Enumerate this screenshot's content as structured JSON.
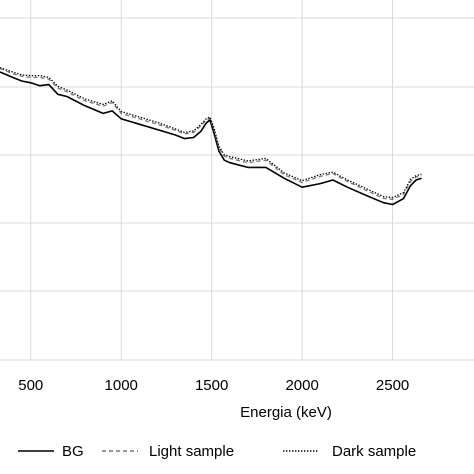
{
  "chart_data": {
    "type": "line",
    "xlabel": "Energia (keV)",
    "x_ticks": [
      "500",
      "1000",
      "1500",
      "2000",
      "2500"
    ],
    "xlim": [
      330,
      2950
    ],
    "ylim": [
      0,
      1
    ],
    "grid": {
      "vertical": true,
      "horizontal": true
    },
    "legend_position": "bottom",
    "series": [
      {
        "name": "BG",
        "style": "solid",
        "color": "#000000",
        "x": [
          330,
          400,
          450,
          500,
          550,
          600,
          650,
          700,
          800,
          900,
          950,
          1000,
          1100,
          1200,
          1300,
          1350,
          1400,
          1440,
          1470,
          1490,
          1510,
          1540,
          1570,
          1600,
          1700,
          1800,
          1900,
          2000,
          2100,
          2170,
          2250,
          2350,
          2450,
          2500,
          2560,
          2600,
          2630,
          2660
        ],
        "y": [
          0.8,
          0.785,
          0.775,
          0.77,
          0.762,
          0.765,
          0.738,
          0.732,
          0.706,
          0.685,
          0.692,
          0.67,
          0.655,
          0.64,
          0.625,
          0.615,
          0.618,
          0.635,
          0.658,
          0.667,
          0.635,
          0.58,
          0.555,
          0.548,
          0.535,
          0.535,
          0.505,
          0.48,
          0.49,
          0.5,
          0.48,
          0.458,
          0.437,
          0.432,
          0.448,
          0.485,
          0.5,
          0.505
        ]
      },
      {
        "name": "Light sample",
        "style": "dashed",
        "color": "#777777",
        "x": [
          330,
          400,
          450,
          500,
          550,
          600,
          650,
          700,
          800,
          900,
          950,
          1000,
          1100,
          1200,
          1300,
          1350,
          1400,
          1440,
          1470,
          1490,
          1510,
          1540,
          1570,
          1600,
          1700,
          1800,
          1900,
          2000,
          2100,
          2170,
          2250,
          2350,
          2450,
          2500,
          2560,
          2600,
          2630,
          2660
        ],
        "y": [
          0.81,
          0.795,
          0.788,
          0.785,
          0.785,
          0.78,
          0.755,
          0.745,
          0.72,
          0.705,
          0.715,
          0.685,
          0.67,
          0.655,
          0.638,
          0.628,
          0.632,
          0.65,
          0.667,
          0.672,
          0.645,
          0.59,
          0.566,
          0.56,
          0.548,
          0.555,
          0.515,
          0.493,
          0.51,
          0.518,
          0.496,
          0.472,
          0.449,
          0.446,
          0.46,
          0.497,
          0.508,
          0.512
        ]
      },
      {
        "name": "Dark sample",
        "style": "dotted",
        "color": "#000000",
        "x": [
          330,
          400,
          450,
          500,
          550,
          600,
          650,
          700,
          800,
          900,
          950,
          1000,
          1100,
          1200,
          1300,
          1350,
          1400,
          1440,
          1470,
          1490,
          1510,
          1540,
          1570,
          1600,
          1700,
          1800,
          1900,
          2000,
          2100,
          2170,
          2250,
          2350,
          2450,
          2500,
          2560,
          2600,
          2630,
          2660
        ],
        "y": [
          0.812,
          0.8,
          0.792,
          0.79,
          0.79,
          0.785,
          0.76,
          0.75,
          0.725,
          0.71,
          0.72,
          0.69,
          0.675,
          0.66,
          0.642,
          0.632,
          0.636,
          0.654,
          0.67,
          0.675,
          0.648,
          0.594,
          0.57,
          0.565,
          0.553,
          0.56,
          0.52,
          0.498,
          0.515,
          0.522,
          0.5,
          0.477,
          0.454,
          0.451,
          0.465,
          0.502,
          0.512,
          0.516
        ]
      }
    ]
  }
}
